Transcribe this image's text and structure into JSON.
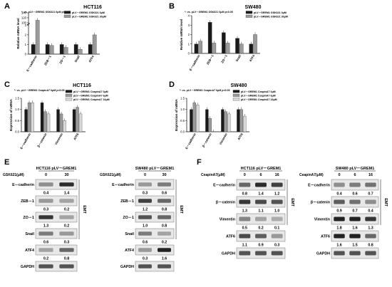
{
  "panels": {
    "A": {
      "letter": "A",
      "title": "HCT116",
      "ylabel": "Relative mRNA level",
      "note": "*: vs. pLV－GREM1 GSK621 0μM p<0.05",
      "legend": [
        "pLV－GREM1 GSK621 0μM",
        "pLV－GREM1 GSK621 30μM"
      ]
    },
    "B": {
      "letter": "B",
      "title": "SW480",
      "ylabel": "Relative mRNA level",
      "note": "*: vs. pLV－GREM1 GSK621 0μM p<0.05",
      "legend": [
        "pLV－GREM1 GSK621 0μM",
        "pLV－GREM1 GSK621 30μM"
      ]
    },
    "C": {
      "letter": "C",
      "title": "HCT116",
      "ylabel": "Expression of mRNA",
      "note": "*: vs. pLV－GREM1 CeapinA7 0μM p<0.05",
      "legend": [
        "pLV－GREM1 CeapinA7 0μM",
        "pLV－GREM1 CeapinA7 6μM",
        "pLV－GREM1 CeapinA7 16μM"
      ]
    },
    "D": {
      "letter": "D",
      "title": "SW480",
      "ylabel": "Expression of mRNA",
      "note": "*: vs. pLV－GREM1 CeapinA7 0μM p<0.05",
      "legend": [
        "pLV－GREM1 CeapinA7 0μM",
        "pLV－GREM1 CeapinA7 6μM",
        "pLV－GREM1 CeapinA7 16μM"
      ]
    },
    "E": {
      "letter": "E"
    },
    "F": {
      "letter": "F"
    }
  },
  "chart_data": [
    {
      "panel": "A",
      "type": "bar",
      "title": "HCT116",
      "ylabel": "Relative mRNA level",
      "categories": [
        "E－cadherin",
        "ZEB－1",
        "ZO－1",
        "Snail",
        "ATF4"
      ],
      "series": [
        {
          "name": "pLV－GREM1 GSK621 0μM",
          "values": [
            1.0,
            1.0,
            1.0,
            1.0,
            1.0
          ]
        },
        {
          "name": "pLV－GREM1 GSK621 30μM",
          "values": [
            110,
            0.9,
            0.7,
            0.5,
            2.0
          ]
        }
      ],
      "yticks": [
        "0",
        "1",
        "2",
        "3",
        "100",
        "120",
        "140"
      ]
    },
    {
      "panel": "B",
      "type": "bar",
      "title": "SW480",
      "ylabel": "Relative mRNA level",
      "categories": [
        "E－cadherin",
        "ZEB－1",
        "ZO－1",
        "Snail",
        "ATF4"
      ],
      "series": [
        {
          "name": "pLV－GREM1 GSK621 0μM",
          "values": [
            1.0,
            3.3,
            2.2,
            1.6,
            1.0
          ]
        },
        {
          "name": "pLV－GREM1 GSK621 30μM",
          "values": [
            1.3,
            1.1,
            1.1,
            1.0,
            2.0
          ]
        }
      ],
      "yticks": [
        "0",
        "1",
        "2",
        "3",
        "4"
      ]
    },
    {
      "panel": "C",
      "type": "bar",
      "title": "HCT116",
      "ylabel": "Expression of mRNA",
      "categories": [
        "E－cadherin",
        "β－catenin",
        "Vimentin",
        "ATF6"
      ],
      "series": [
        {
          "name": "pLV－GREM1 CeapinA7 0μM",
          "values": [
            1.0,
            1.3,
            1.0,
            1.0
          ]
        },
        {
          "name": "pLV－GREM1 CeapinA7 6μM",
          "values": [
            1.3,
            0.9,
            0.8,
            1.1
          ]
        },
        {
          "name": "pLV－GREM1 CeapinA7 16μM",
          "values": [
            1.3,
            0.8,
            0.5,
            0.8
          ]
        }
      ],
      "yticks": [
        "0.0",
        "0.5",
        "1.0",
        "1.5"
      ]
    },
    {
      "panel": "D",
      "type": "bar",
      "title": "SW480",
      "ylabel": "Expression of mRNA",
      "categories": [
        "E－cadherin",
        "β－catenin",
        "Vimentin",
        "ATF6"
      ],
      "series": [
        {
          "name": "pLV－GREM1 CeapinA7 0μM",
          "values": [
            1.0,
            1.0,
            1.0,
            1.0
          ]
        },
        {
          "name": "pLV－GREM1 CeapinA7 6μM",
          "values": [
            1.3,
            0.6,
            0.9,
            1.0
          ]
        },
        {
          "name": "pLV－GREM1 CeapinA7 16μM",
          "values": [
            1.2,
            0.0,
            0.8,
            0.7
          ]
        }
      ],
      "yticks": [
        "0.0",
        "0.5",
        "1.0",
        "1.5"
      ]
    }
  ],
  "blots": {
    "E1": {
      "title": "HCT116 pLV－GREM1",
      "treat": "GSK621(μM)",
      "conc": [
        "0",
        "30"
      ],
      "side": "EMT",
      "rows": [
        {
          "label": "E－cadherin",
          "q": [
            "0.4",
            "1.4"
          ]
        },
        {
          "label": "ZEB－1",
          "q": [
            "0.3",
            "0.2"
          ]
        },
        {
          "label": "ZO－1",
          "q": [
            "1.3",
            "0.2"
          ]
        },
        {
          "label": "Snail",
          "q": [
            "0.6",
            "0.3"
          ]
        },
        {
          "label": "ATF4",
          "q": [
            "0.2",
            "0.8"
          ]
        },
        {
          "label": "GAPDH",
          "q": []
        }
      ]
    },
    "E2": {
      "title": "SW480 pLV－GREM1",
      "treat": "GSK621(μM)",
      "conc": [
        "0",
        "30"
      ],
      "side": "EMT",
      "rows": [
        {
          "label": "E－cadherin",
          "q": [
            "0.3",
            "0.6"
          ]
        },
        {
          "label": "ZEB－1",
          "q": [
            "1.2",
            "0.8"
          ]
        },
        {
          "label": "ZO－1",
          "q": [
            "1.0",
            "0.8"
          ]
        },
        {
          "label": "Snail",
          "q": [
            "0.6",
            "0.2"
          ]
        },
        {
          "label": "ATF4",
          "q": [
            "0.3",
            "1.6"
          ]
        },
        {
          "label": "GAPDH",
          "q": []
        }
      ]
    },
    "F1": {
      "title": "HCT116 pLV－GREM1",
      "treat": "CeapinA7(μM)",
      "conc": [
        "0",
        "6",
        "16"
      ],
      "side": "EMT",
      "rows": [
        {
          "label": "E－cadherin",
          "q": [
            "0.8",
            "1.4",
            "1.2"
          ]
        },
        {
          "label": "β－catenin",
          "q": [
            "1.3",
            "1.1",
            "1.0"
          ]
        },
        {
          "label": "Vimentin",
          "q": [
            "0.5",
            "0.2",
            "0.1"
          ]
        },
        {
          "label": "ATF6",
          "q": [
            "1.1",
            "0.9",
            "0.3"
          ]
        },
        {
          "label": "GAPDH",
          "q": []
        }
      ]
    },
    "F2": {
      "title": "SW480 pLV－GREM1",
      "treat": "CeapinA7(μM)",
      "conc": [
        "0",
        "6",
        "16"
      ],
      "side": "EMT",
      "rows": [
        {
          "label": "E－cadherin",
          "q": [
            "0.4",
            "0.6",
            "0.7"
          ]
        },
        {
          "label": "β－catenin",
          "q": [
            "0.9",
            "0.7",
            "0.4"
          ]
        },
        {
          "label": "Vimentin",
          "q": [
            "1.8",
            "1.6",
            "1.3"
          ]
        },
        {
          "label": "ATF6",
          "q": [
            "1.6",
            "1.5",
            "0.8"
          ]
        },
        {
          "label": "GAPDH",
          "q": []
        }
      ]
    }
  },
  "colors": {
    "dark": "#1a1a1a",
    "mid": "#9a9a9a",
    "light": "#d9d9d9",
    "band": "#222222",
    "blotbg": "#e8e8e8"
  }
}
